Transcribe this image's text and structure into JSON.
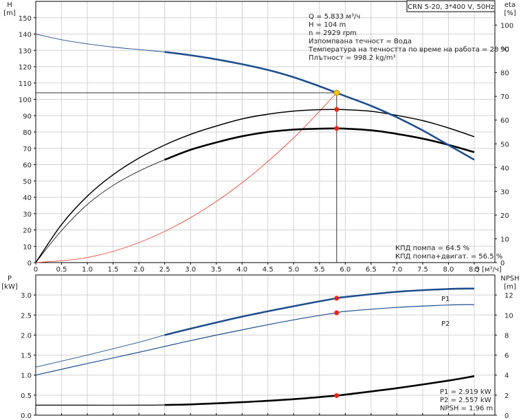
{
  "chart_data": [
    {
      "type": "line",
      "title": "CRN 5-20, 3*400 V, 50Hz",
      "xlabel": "Q [м³/ч]",
      "ylabel_left": "H\n[m]",
      "ylabel_right": "eta\n[%]",
      "xlim": [
        0,
        8.9
      ],
      "xticks": [
        0,
        0.5,
        1.0,
        1.5,
        2.0,
        2.5,
        3.0,
        3.5,
        4.0,
        4.5,
        5.0,
        5.5,
        6.0,
        6.5,
        7.0,
        7.5,
        8.0,
        8.5
      ],
      "xtick_labels": [
        "0",
        "0.5",
        "1.0",
        "1.5",
        "2.0",
        "2.5",
        "3.0",
        "3.5",
        "4.0",
        "4.5",
        "5.0",
        "5.5",
        "6.0",
        "6.5",
        "7.0",
        "7.5",
        "8.0",
        "8.5"
      ],
      "ylim_left": [
        0,
        160
      ],
      "yticks_left": [
        0,
        10,
        20,
        30,
        40,
        50,
        60,
        70,
        80,
        90,
        100,
        110,
        120,
        130,
        140,
        150
      ],
      "ylim_right": [
        0,
        110
      ],
      "yticks_right": [
        0,
        10,
        20,
        30,
        40,
        50,
        60,
        70,
        80,
        90,
        100
      ],
      "grid": true,
      "series": [
        {
          "key": "H",
          "axis": "left",
          "color": "#1f4e8c",
          "x": [
            0,
            0.5,
            1.0,
            1.5,
            2.0,
            2.5,
            3.0,
            3.5,
            4.0,
            4.5,
            5.0,
            5.5,
            5.833,
            6.0,
            6.5,
            7.0,
            7.5,
            8.0,
            8.5
          ],
          "y": [
            140,
            136.5,
            134,
            132,
            130.5,
            129,
            127,
            124.5,
            121.5,
            118,
            113.5,
            108,
            104,
            102,
            96,
            89,
            81,
            72,
            63
          ]
        },
        {
          "key": "eta_pump",
          "axis": "right",
          "color": "#000000",
          "x": [
            0,
            0.5,
            1.0,
            1.5,
            2.0,
            2.5,
            3.0,
            3.5,
            4.0,
            4.5,
            5.0,
            5.5,
            5.833,
            6.0,
            6.5,
            7.0,
            7.5,
            8.0,
            8.5
          ],
          "y": [
            0,
            16,
            28,
            37,
            44,
            49.5,
            54,
            57.5,
            60.5,
            62.5,
            63.8,
            64.4,
            64.5,
            64.4,
            63.7,
            62,
            59.8,
            56.7,
            53
          ]
        },
        {
          "key": "eta_total",
          "axis": "right",
          "color": "#000000",
          "x": [
            0,
            0.5,
            1.0,
            1.5,
            2.0,
            2.5,
            3.0,
            3.5,
            4.0,
            4.5,
            5.0,
            5.5,
            5.833,
            6.0,
            6.5,
            7.0,
            7.5,
            8.0,
            8.5
          ],
          "y": [
            0,
            13.5,
            24.5,
            32.5,
            38.5,
            43.3,
            47.5,
            50.6,
            53.2,
            55,
            56,
            56.4,
            56.5,
            56.4,
            55.7,
            54.2,
            52.2,
            49.6,
            46.5
          ]
        },
        {
          "key": "system",
          "axis": "left",
          "color": "#e8473a",
          "x": [
            0,
            1,
            2,
            3,
            4,
            5,
            5.833
          ],
          "y": [
            0,
            3.06,
            12.2,
            27.5,
            48.9,
            76.4,
            104
          ]
        }
      ],
      "duty_point": {
        "Q": 5.833,
        "H": 104,
        "eta_pump": 64.5,
        "eta_total": 56.5
      },
      "info_lines": [
        "Q = 5.833 м³/ч",
        "H = 104 m",
        "n = 2929 rpm",
        "Изпомпвана течност = Вода",
        "Температура на течността по време на работа = 20 °C",
        "Плътност = 998.2 kg/m³"
      ],
      "eff_lines": [
        "КПД помпа = 64.5 %",
        "КПД помпа+двигат. = 56.5 %"
      ]
    },
    {
      "type": "line",
      "ylabel_left": "P\n[kW]",
      "ylabel_right": "NPSH\n[m]",
      "ylim_left": [
        0,
        3.5
      ],
      "yticks_left": [
        0,
        0.5,
        1.0,
        1.5,
        2.0,
        2.5,
        3.0
      ],
      "ytick_labels_left": [
        "0.0",
        "0.5",
        "1.0",
        "1.5",
        "2.0",
        "2.5",
        "3.0"
      ],
      "ylim_right": [
        0,
        14
      ],
      "yticks_right": [
        0,
        2,
        4,
        6,
        8,
        10,
        12
      ],
      "grid": true,
      "series": [
        {
          "key": "P1",
          "name": "P1",
          "axis": "left",
          "color": "#1f4e8c",
          "x": [
            0,
            1,
            2,
            2.5,
            3,
            4,
            5,
            5.833,
            6,
            7,
            8,
            8.5
          ],
          "y": [
            1.2,
            1.5,
            1.82,
            2.0,
            2.16,
            2.46,
            2.72,
            2.919,
            2.95,
            3.08,
            3.15,
            3.16
          ]
        },
        {
          "key": "P2",
          "name": "P2",
          "axis": "left",
          "color": "#1f4e8c",
          "x": [
            0,
            1,
            2,
            3,
            4,
            5,
            5.833,
            6,
            7,
            8,
            8.5
          ],
          "y": [
            1.0,
            1.29,
            1.57,
            1.86,
            2.13,
            2.38,
            2.557,
            2.59,
            2.69,
            2.75,
            2.76
          ]
        },
        {
          "key": "NPSH",
          "axis": "right",
          "color": "#000000",
          "x": [
            0,
            1,
            2,
            2.5,
            3,
            4,
            5,
            5.833,
            6,
            7,
            8,
            8.5
          ],
          "y": [
            1.0,
            1.0,
            1.0,
            1.02,
            1.08,
            1.3,
            1.6,
            1.96,
            2.05,
            2.7,
            3.45,
            3.9
          ]
        }
      ],
      "duty_point": {
        "Q": 5.833,
        "P1": 2.919,
        "P2": 2.557,
        "NPSH": 1.96
      },
      "info_lines": [
        "P1 = 2.919 kW",
        "P2 = 2.557 kW",
        "NPSH = 1.96 m"
      ]
    }
  ]
}
